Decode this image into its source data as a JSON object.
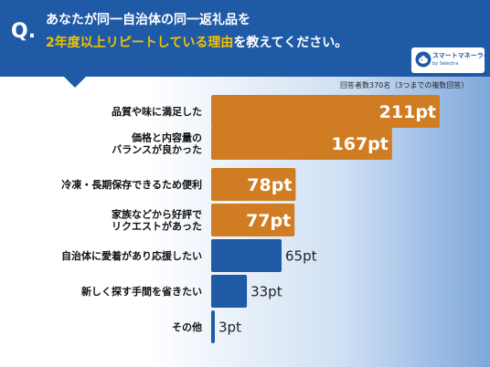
{
  "header": {
    "q_mark": "Q.",
    "title_line1": "あなたが同一自治体の同一返礼品を",
    "title_line2_highlight": "2年度以上リピートしている理由",
    "title_line2_rest": "を教えてください。"
  },
  "logo": {
    "icon": "piggy-bank-icon",
    "main": "スマートマネーライフ",
    "sub": "by Selectra"
  },
  "note": "回答者数370名（3つまでの複数回答）",
  "colors": {
    "header": "#1f5aa6",
    "highlight": "#f2c200",
    "bar_orange": "#d07c22",
    "bar_blue": "#1f5aa6"
  },
  "chart_data": {
    "type": "bar",
    "orientation": "horizontal",
    "categories": [
      "品質や味に満足した",
      "価格と内容量の\nバランスが良かった",
      "冷凍・長期保存できるため便利",
      "家族などから好評で\nリクエストがあった",
      "自治体に愛着があり応援したい",
      "新しく探す手間を省きたい",
      "その他"
    ],
    "values": [
      211,
      167,
      78,
      77,
      65,
      33,
      3
    ],
    "labels": [
      "211pt",
      "167pt",
      "78pt",
      "77pt",
      "65pt",
      "33pt",
      "3pt"
    ],
    "bar_colors": [
      "#d07c22",
      "#d07c22",
      "#d07c22",
      "#d07c22",
      "#1f5aa6",
      "#1f5aa6",
      "#1f5aa6"
    ],
    "xlim": [
      0,
      211
    ],
    "grid": false,
    "legend": "none"
  }
}
